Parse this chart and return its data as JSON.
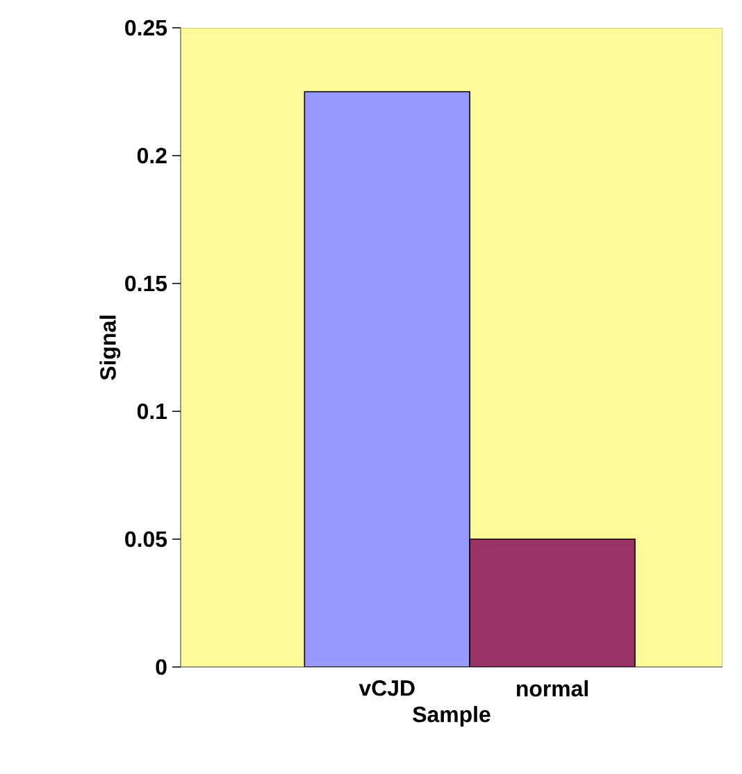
{
  "chart_data": {
    "type": "bar",
    "xlabel": "Sample",
    "ylabel": "Signal",
    "categories": [
      "vCJD",
      "normal"
    ],
    "values": [
      0.225,
      0.05
    ],
    "colors": [
      "#9999ff",
      "#993366"
    ],
    "ylim": [
      0,
      0.25
    ],
    "yticks": [
      0,
      0.05,
      0.1,
      0.15,
      0.2,
      0.25
    ],
    "grid": false
  }
}
